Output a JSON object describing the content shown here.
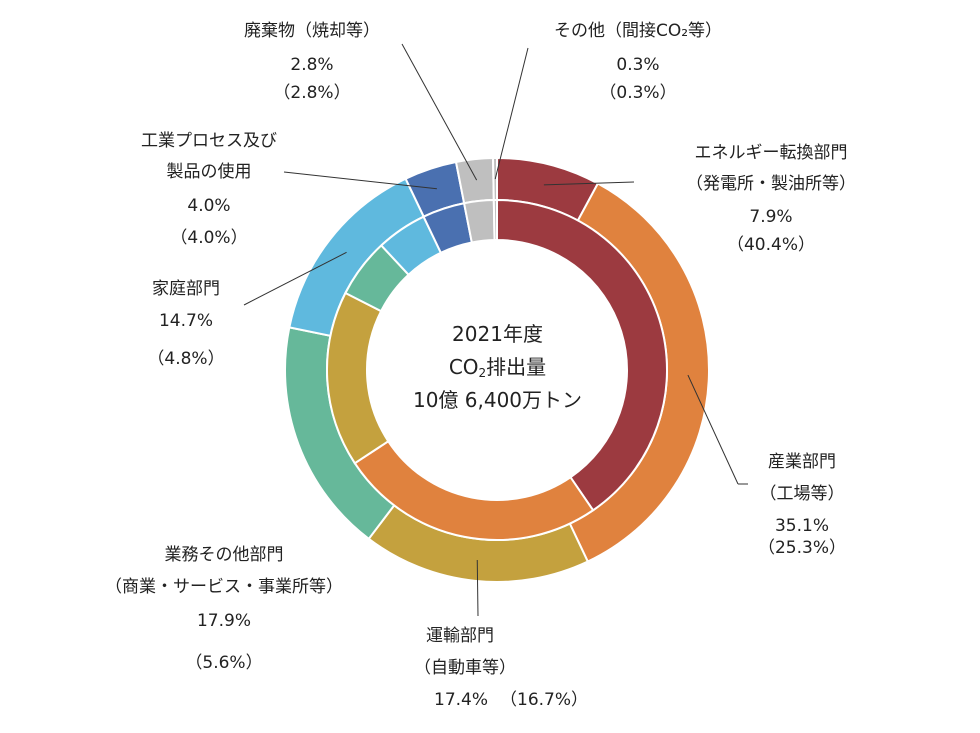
{
  "chart_data": {
    "type": "pie",
    "center_label": {
      "line1": "2021年度",
      "line2_prefix": "CO",
      "line2_sub": "2",
      "line2_suffix": "排出量",
      "line3": "10億 6,400万トン"
    },
    "series": [
      {
        "name": "outer",
        "values": [
          7.9,
          35.1,
          17.4,
          17.9,
          14.7,
          4.0,
          2.8,
          0.3
        ]
      },
      {
        "name": "inner",
        "values": [
          40.4,
          25.3,
          16.7,
          5.6,
          4.8,
          4.0,
          2.8,
          0.3
        ]
      }
    ],
    "categories": [
      {
        "key": "energy",
        "line1": "エネルギー転換部門",
        "line2": "（発電所・製油所等）",
        "outer_value": "7.9%",
        "inner_value": "（40.4%）",
        "color": "#9c3a40"
      },
      {
        "key": "industry",
        "line1": "産業部門",
        "line2": "（工場等）",
        "outer_value": "35.1%",
        "inner_value": "（25.3%）",
        "color": "#e0823e"
      },
      {
        "key": "transport",
        "line1": "運輸部門",
        "line2": "（自動車等）",
        "outer_value": "17.4%",
        "inner_value": "（16.7%）",
        "color": "#c4a13e"
      },
      {
        "key": "commercial",
        "line1": "業務その他部門",
        "line2": "（商業・サービス・事業所等）",
        "outer_value": "17.9%",
        "inner_value": "（5.6%）",
        "color": "#66b89a"
      },
      {
        "key": "household",
        "line1": "家庭部門",
        "line2": "",
        "outer_value": "14.7%",
        "inner_value": "（4.8%）",
        "color": "#5fb9de"
      },
      {
        "key": "process",
        "line1": "工業プロセス及び",
        "line2": "製品の使用",
        "outer_value": "4.0%",
        "inner_value": "（4.0%）",
        "color": "#4a70b0"
      },
      {
        "key": "waste",
        "line1": "廃棄物（焼却等）",
        "line2": "",
        "outer_value": "2.8%",
        "inner_value": "（2.8%）",
        "color": "#bfbfbf"
      },
      {
        "key": "other",
        "line1": "その他（間接CO₂等）",
        "line2": "",
        "outer_value": "0.3%",
        "inner_value": "（0.3%）",
        "color": "#bfbfbf"
      }
    ]
  }
}
